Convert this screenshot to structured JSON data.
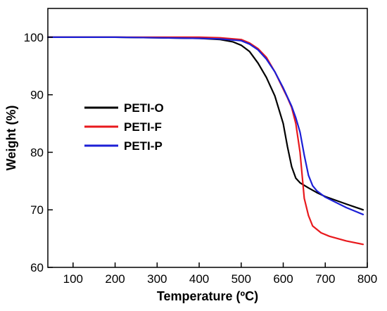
{
  "chart_data": {
    "type": "line",
    "xlabel": "Temperature (ºC)",
    "ylabel": "Weight (%)",
    "xlim": [
      40,
      800
    ],
    "ylim": [
      60,
      105
    ],
    "xticks": [
      100,
      200,
      300,
      400,
      500,
      600,
      700,
      800
    ],
    "yticks": [
      60,
      70,
      80,
      90,
      100
    ],
    "grid": false,
    "legend_position": "center-left",
    "series": [
      {
        "name": "PETI-O",
        "color": "#000000",
        "x": [
          40,
          100,
          200,
          300,
          400,
          450,
          480,
          500,
          520,
          540,
          560,
          580,
          600,
          610,
          620,
          630,
          640,
          660,
          680,
          700,
          750,
          790
        ],
        "y": [
          100.0,
          100.0,
          100.0,
          99.9,
          99.8,
          99.6,
          99.2,
          98.6,
          97.5,
          95.5,
          93.0,
          89.8,
          85.0,
          81.0,
          77.5,
          75.5,
          74.7,
          73.8,
          73.0,
          72.3,
          71.0,
          70.0
        ]
      },
      {
        "name": "PETI-F",
        "color": "#e8191d",
        "x": [
          40,
          100,
          200,
          300,
          400,
          450,
          500,
          520,
          540,
          560,
          580,
          600,
          610,
          620,
          630,
          640,
          645,
          650,
          660,
          670,
          690,
          710,
          750,
          790
        ],
        "y": [
          100.0,
          100.0,
          100.0,
          100.0,
          100.0,
          99.9,
          99.6,
          99.0,
          98.0,
          96.5,
          94.0,
          91.0,
          89.5,
          87.8,
          85.0,
          80.0,
          76.0,
          72.0,
          69.0,
          67.2,
          66.0,
          65.4,
          64.6,
          64.0
        ]
      },
      {
        "name": "PETI-P",
        "color": "#1c1fd6",
        "x": [
          40,
          100,
          200,
          300,
          400,
          450,
          500,
          520,
          540,
          560,
          580,
          600,
          620,
          630,
          640,
          650,
          660,
          670,
          680,
          700,
          750,
          790
        ],
        "y": [
          100.0,
          100.0,
          100.0,
          99.9,
          99.8,
          99.7,
          99.4,
          98.8,
          97.8,
          96.2,
          94.0,
          91.2,
          88.0,
          86.0,
          83.5,
          79.5,
          76.0,
          74.2,
          73.3,
          72.2,
          70.4,
          69.2
        ]
      }
    ]
  }
}
